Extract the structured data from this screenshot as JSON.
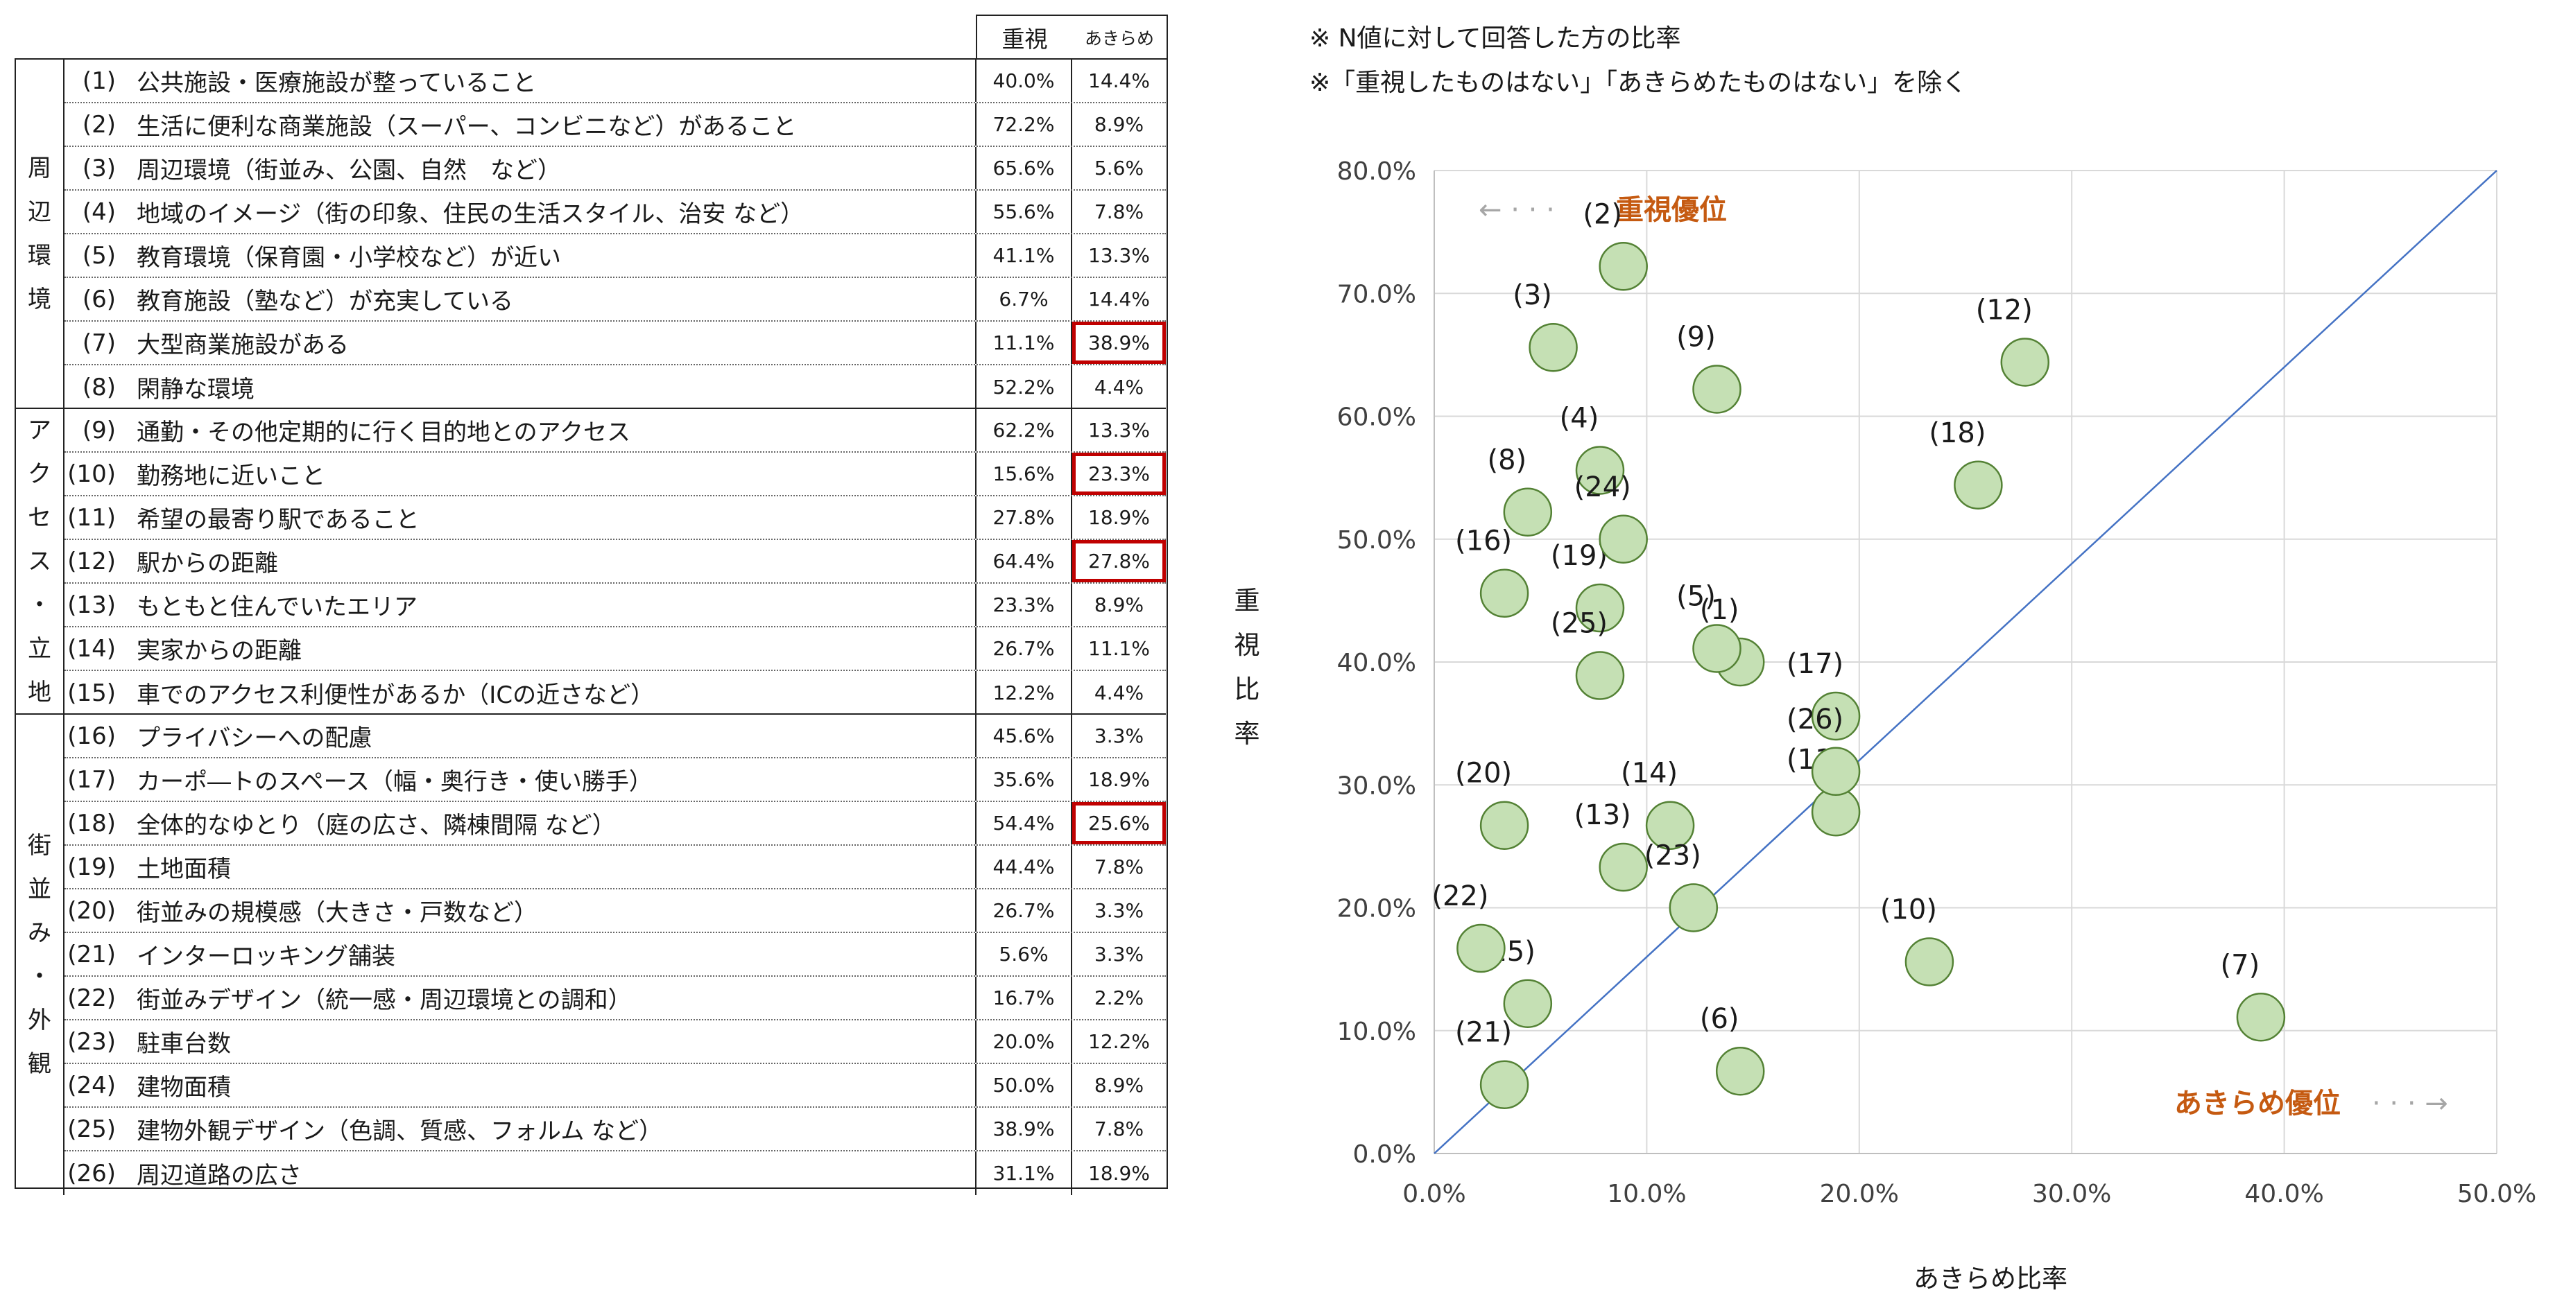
{
  "table": {
    "headers": {
      "juushi": "重視",
      "akirame": "あきらめ"
    },
    "groups": [
      {
        "name": "周辺環境",
        "chars": [
          "周",
          "辺",
          "環",
          "境"
        ],
        "rows": [
          {
            "no": "(1)",
            "label": "公共施設・医療施設が整っていること",
            "juushi": "40.0%",
            "akirame": "14.4%",
            "highlight": false
          },
          {
            "no": "(2)",
            "label": "生活に便利な商業施設（スーパー、コンビニなど）があること",
            "juushi": "72.2%",
            "akirame": "8.9%",
            "highlight": false
          },
          {
            "no": "(3)",
            "label": "周辺環境（街並み、公園、自然　など）",
            "juushi": "65.6%",
            "akirame": "5.6%",
            "highlight": false
          },
          {
            "no": "(4)",
            "label": "地域のイメージ（街の印象、住民の生活スタイル、治安 など）",
            "juushi": "55.6%",
            "akirame": "7.8%",
            "highlight": false
          },
          {
            "no": "(5)",
            "label": "教育環境（保育園・小学校など）が近い",
            "juushi": "41.1%",
            "akirame": "13.3%",
            "highlight": false
          },
          {
            "no": "(6)",
            "label": "教育施設（塾など）が充実している",
            "juushi": "6.7%",
            "akirame": "14.4%",
            "highlight": false
          },
          {
            "no": "(7)",
            "label": "大型商業施設がある",
            "juushi": "11.1%",
            "akirame": "38.9%",
            "highlight": true
          },
          {
            "no": "(8)",
            "label": "閑静な環境",
            "juushi": "52.2%",
            "akirame": "4.4%",
            "highlight": false
          }
        ]
      },
      {
        "name": "アクセス・立地",
        "chars": [
          "ア",
          "ク",
          "セ",
          "ス",
          "・",
          "立",
          "地"
        ],
        "rows": [
          {
            "no": "(9)",
            "label": "通勤・その他定期的に行く目的地とのアクセス",
            "juushi": "62.2%",
            "akirame": "13.3%",
            "highlight": false
          },
          {
            "no": "(10)",
            "label": "勤務地に近いこと",
            "juushi": "15.6%",
            "akirame": "23.3%",
            "highlight": true
          },
          {
            "no": "(11)",
            "label": "希望の最寄り駅であること",
            "juushi": "27.8%",
            "akirame": "18.9%",
            "highlight": false
          },
          {
            "no": "(12)",
            "label": "駅からの距離",
            "juushi": "64.4%",
            "akirame": "27.8%",
            "highlight": true
          },
          {
            "no": "(13)",
            "label": "もともと住んでいたエリア",
            "juushi": "23.3%",
            "akirame": "8.9%",
            "highlight": false
          },
          {
            "no": "(14)",
            "label": "実家からの距離",
            "juushi": "26.7%",
            "akirame": "11.1%",
            "highlight": false
          },
          {
            "no": "(15)",
            "label": "車でのアクセス利便性があるか（ICの近さなど）",
            "juushi": "12.2%",
            "akirame": "4.4%",
            "highlight": false
          }
        ]
      },
      {
        "name": "街並み・外観",
        "chars": [
          "街",
          "並",
          "み",
          "・",
          "外",
          "観"
        ],
        "rows": [
          {
            "no": "(16)",
            "label": "プライバシーへの配慮",
            "juushi": "45.6%",
            "akirame": "3.3%",
            "highlight": false
          },
          {
            "no": "(17)",
            "label": "カーポ―トのスペース（幅・奥行き・使い勝手）",
            "juushi": "35.6%",
            "akirame": "18.9%",
            "highlight": false
          },
          {
            "no": "(18)",
            "label": "全体的なゆとり（庭の広さ、隣棟間隔 など）",
            "juushi": "54.4%",
            "akirame": "25.6%",
            "highlight": true
          },
          {
            "no": "(19)",
            "label": "土地面積",
            "juushi": "44.4%",
            "akirame": "7.8%",
            "highlight": false
          },
          {
            "no": "(20)",
            "label": "街並みの規模感（大きさ・戸数など）",
            "juushi": "26.7%",
            "akirame": "3.3%",
            "highlight": false
          },
          {
            "no": "(21)",
            "label": "インターロッキング舗装",
            "juushi": "5.6%",
            "akirame": "3.3%",
            "highlight": false
          },
          {
            "no": "(22)",
            "label": "街並みデザイン（統一感・周辺環境との調和）",
            "juushi": "16.7%",
            "akirame": "2.2%",
            "highlight": false
          },
          {
            "no": "(23)",
            "label": "駐車台数",
            "juushi": "20.0%",
            "akirame": "12.2%",
            "highlight": false
          },
          {
            "no": "(24)",
            "label": "建物面積",
            "juushi": "50.0%",
            "akirame": "8.9%",
            "highlight": false
          },
          {
            "no": "(25)",
            "label": "建物外観デザイン（色調、質感、フォルム など）",
            "juushi": "38.9%",
            "akirame": "7.8%",
            "highlight": false
          },
          {
            "no": "(26)",
            "label": "周辺道路の広さ",
            "juushi": "31.1%",
            "akirame": "18.9%",
            "highlight": false
          }
        ]
      }
    ]
  },
  "notes": {
    "note1": "※ N値に対して回答した方の比率",
    "note2": "※「重視したものはない」「あきらめたものはない」を除く"
  },
  "chart_data": {
    "type": "scatter",
    "xlabel": "あきらめ比率",
    "ylabel": "重視比率",
    "ylabel_chars": [
      "重",
      "視",
      "比",
      "率"
    ],
    "xlim": [
      0,
      50
    ],
    "ylim": [
      0,
      80
    ],
    "x_ticks": [
      "0.0%",
      "10.0%",
      "20.0%",
      "30.0%",
      "40.0%",
      "50.0%"
    ],
    "y_ticks": [
      "0.0%",
      "10.0%",
      "20.0%",
      "30.0%",
      "40.0%",
      "50.0%",
      "60.0%",
      "70.0%",
      "80.0%"
    ],
    "grid": true,
    "reference_line": "y = 1.6x (diagonal from origin to top-right corner)",
    "annotations": {
      "top_left": "重視優位",
      "bottom_right": "あきらめ優位"
    },
    "colors": {
      "marker_fill": "#c5e0b4",
      "marker_edge": "#548235",
      "line": "#4472c4",
      "annotation": "#c55a11",
      "arrow": "#a6a6a6"
    },
    "points": [
      {
        "label": "(1)",
        "x": 14.4,
        "y": 40.0
      },
      {
        "label": "(2)",
        "x": 8.9,
        "y": 72.2
      },
      {
        "label": "(3)",
        "x": 5.6,
        "y": 65.6
      },
      {
        "label": "(4)",
        "x": 7.8,
        "y": 55.6
      },
      {
        "label": "(5)",
        "x": 13.3,
        "y": 41.1
      },
      {
        "label": "(6)",
        "x": 14.4,
        "y": 6.7
      },
      {
        "label": "(7)",
        "x": 38.9,
        "y": 11.1
      },
      {
        "label": "(8)",
        "x": 4.4,
        "y": 52.2
      },
      {
        "label": "(9)",
        "x": 13.3,
        "y": 62.2
      },
      {
        "label": "(10)",
        "x": 23.3,
        "y": 15.6
      },
      {
        "label": "(11)",
        "x": 18.9,
        "y": 27.8
      },
      {
        "label": "(12)",
        "x": 27.8,
        "y": 64.4
      },
      {
        "label": "(13)",
        "x": 8.9,
        "y": 23.3
      },
      {
        "label": "(14)",
        "x": 11.1,
        "y": 26.7
      },
      {
        "label": "(15)",
        "x": 4.4,
        "y": 12.2
      },
      {
        "label": "(16)",
        "x": 3.3,
        "y": 45.6
      },
      {
        "label": "(17)",
        "x": 18.9,
        "y": 35.6
      },
      {
        "label": "(18)",
        "x": 25.6,
        "y": 54.4
      },
      {
        "label": "(19)",
        "x": 7.8,
        "y": 44.4
      },
      {
        "label": "(20)",
        "x": 3.3,
        "y": 26.7
      },
      {
        "label": "(21)",
        "x": 3.3,
        "y": 5.6
      },
      {
        "label": "(22)",
        "x": 2.2,
        "y": 16.7
      },
      {
        "label": "(23)",
        "x": 12.2,
        "y": 20.0
      },
      {
        "label": "(24)",
        "x": 8.9,
        "y": 50.0
      },
      {
        "label": "(25)",
        "x": 7.8,
        "y": 38.9
      },
      {
        "label": "(26)",
        "x": 18.9,
        "y": 31.1
      }
    ]
  }
}
